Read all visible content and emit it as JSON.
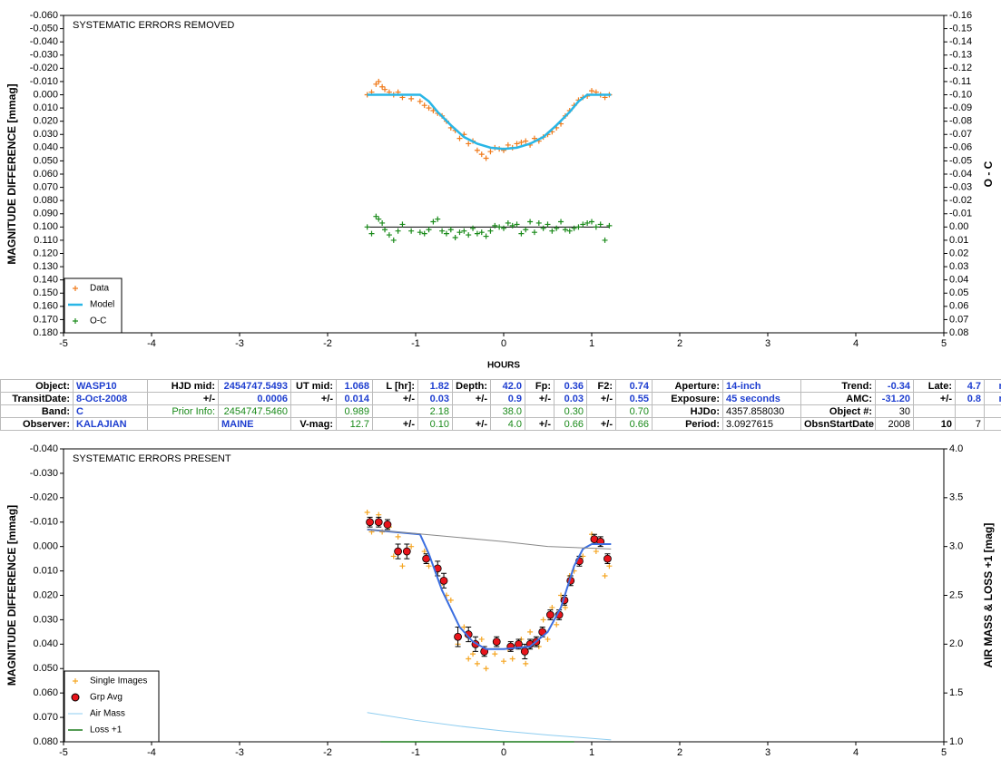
{
  "chart_data": [
    {
      "type": "scatter",
      "title": "SYSTEMATIC ERRORS REMOVED",
      "xlabel": "HOURS",
      "ylabel": "MAGNITUDE DIFFERENCE [mmag]",
      "y2label": "O - C",
      "xlim": [
        -5,
        5
      ],
      "xticks": [
        -5,
        -4,
        -3,
        -2,
        -1,
        0,
        1,
        2,
        3,
        4,
        5
      ],
      "ylim": [
        0.18,
        -0.06
      ],
      "yticks": [
        {
          "value": -0.06,
          "label": "-0.060"
        },
        {
          "value": -0.05,
          "label": "-0.050"
        },
        {
          "value": -0.04,
          "label": "-0.040"
        },
        {
          "value": -0.03,
          "label": "-0.030"
        },
        {
          "value": -0.02,
          "label": "-0.020"
        },
        {
          "value": -0.01,
          "label": "-0.010"
        },
        {
          "value": 0,
          "label": "0.000"
        },
        {
          "value": 0.01,
          "label": "0.010"
        },
        {
          "value": 0.02,
          "label": "0.020"
        },
        {
          "value": 0.03,
          "label": "0.030"
        },
        {
          "value": 0.04,
          "label": "0.040"
        },
        {
          "value": 0.05,
          "label": "0.050"
        },
        {
          "value": 0.06,
          "label": "0.060"
        },
        {
          "value": 0.07,
          "label": "0.070"
        },
        {
          "value": 0.08,
          "label": "0.080"
        },
        {
          "value": 0.09,
          "label": "0.090"
        },
        {
          "value": 0.1,
          "label": "0.100"
        },
        {
          "value": 0.11,
          "label": "0.110"
        },
        {
          "value": 0.12,
          "label": "0.120"
        },
        {
          "value": 0.13,
          "label": "0.130"
        },
        {
          "value": 0.14,
          "label": "0.140"
        },
        {
          "value": 0.15,
          "label": "0.150"
        },
        {
          "value": 0.16,
          "label": "0.160"
        },
        {
          "value": 0.17,
          "label": "0.170"
        },
        {
          "value": 0.18,
          "label": "0.180"
        }
      ],
      "y2lim": [
        0.08,
        -0.16
      ],
      "y2ticks": [
        -0.16,
        -0.15,
        -0.14,
        -0.13,
        -0.12,
        -0.11,
        {
          "value": -0.1,
          "label": "-0.10"
        },
        -0.09,
        -0.08,
        -0.07,
        -0.06,
        -0.05,
        -0.04,
        -0.03,
        -0.02,
        -0.01,
        {
          "value": 0,
          "label": "0.00"
        },
        0.01,
        0.02,
        0.03,
        0.04,
        0.05,
        0.06,
        0.07,
        0.08
      ],
      "y2_zero_tick": 16,
      "legend": "lower left",
      "series": [
        {
          "name": "Data",
          "style": "plus",
          "color": "#f07a1a",
          "x": [
            -1.55,
            -1.5,
            -1.45,
            -1.42,
            -1.38,
            -1.35,
            -1.3,
            -1.25,
            -1.2,
            -1.15,
            -1.05,
            -0.95,
            -0.9,
            -0.85,
            -0.8,
            -0.75,
            -0.7,
            -0.65,
            -0.6,
            -0.55,
            -0.5,
            -0.45,
            -0.4,
            -0.35,
            -0.3,
            -0.25,
            -0.2,
            -0.15,
            -0.1,
            -0.05,
            0,
            0.05,
            0.1,
            0.15,
            0.2,
            0.25,
            0.3,
            0.35,
            0.4,
            0.45,
            0.5,
            0.55,
            0.6,
            0.65,
            0.7,
            0.75,
            0.8,
            0.85,
            0.9,
            0.95,
            1.0,
            1.05,
            1.1,
            1.15,
            1.2
          ],
          "values": [
            0,
            -0.002,
            -0.008,
            -0.01,
            -0.006,
            -0.004,
            -0.002,
            0,
            -0.002,
            0.002,
            0.003,
            0.005,
            0.008,
            0.01,
            0.012,
            0.014,
            0.016,
            0.02,
            0.025,
            0.027,
            0.033,
            0.03,
            0.037,
            0.035,
            0.042,
            0.045,
            0.048,
            0.043,
            0.04,
            0.041,
            0.042,
            0.038,
            0.04,
            0.037,
            0.036,
            0.035,
            0.038,
            0.033,
            0.035,
            0.032,
            0.03,
            0.028,
            0.025,
            0.022,
            0.016,
            0.012,
            0.008,
            0.004,
            0.002,
            0.001,
            -0.003,
            -0.002,
            0,
            0.002,
            0
          ]
        },
        {
          "name": "Model",
          "style": "line",
          "color": "#29b6e6",
          "width": 2.5,
          "x": [
            -1.55,
            -0.95,
            -0.85,
            -0.75,
            -0.6,
            -0.45,
            -0.3,
            -0.15,
            0,
            0.15,
            0.3,
            0.45,
            0.6,
            0.75,
            0.85,
            0.95,
            1.22
          ],
          "values": [
            0,
            0,
            0.005,
            0.013,
            0.023,
            0.032,
            0.037,
            0.04,
            0.041,
            0.04,
            0.037,
            0.032,
            0.023,
            0.013,
            0.005,
            0,
            0
          ]
        },
        {
          "name": "O-C",
          "style": "plus",
          "color": "#1a8a1a",
          "axis": "y2",
          "x": [
            -1.55,
            -1.5,
            -1.45,
            -1.42,
            -1.38,
            -1.35,
            -1.3,
            -1.25,
            -1.2,
            -1.15,
            -1.05,
            -0.95,
            -0.9,
            -0.85,
            -0.8,
            -0.75,
            -0.7,
            -0.65,
            -0.6,
            -0.55,
            -0.5,
            -0.45,
            -0.4,
            -0.35,
            -0.3,
            -0.25,
            -0.2,
            -0.15,
            -0.1,
            -0.05,
            0,
            0.05,
            0.1,
            0.15,
            0.2,
            0.25,
            0.3,
            0.35,
            0.4,
            0.45,
            0.5,
            0.55,
            0.6,
            0.65,
            0.7,
            0.75,
            0.8,
            0.85,
            0.9,
            0.95,
            1.0,
            1.05,
            1.1,
            1.15,
            1.2
          ],
          "values": [
            0,
            0.005,
            -0.008,
            -0.006,
            -0.003,
            0.002,
            0.006,
            0.01,
            0.003,
            -0.002,
            0.003,
            0.004,
            0.005,
            0.002,
            -0.004,
            -0.006,
            0.003,
            0.005,
            0.002,
            0.008,
            0.004,
            0.003,
            0.006,
            0.001,
            0.005,
            0.004,
            0.007,
            0.003,
            -0.001,
            0,
            0.001,
            -0.003,
            -0.001,
            -0.002,
            0.005,
            0.002,
            -0.004,
            0.004,
            -0.003,
            0.001,
            -0.002,
            0.003,
            0.001,
            -0.004,
            0.002,
            0.003,
            0.001,
            0,
            -0.002,
            -0.003,
            -0.004,
            0,
            -0.002,
            0.01,
            -0.001
          ]
        }
      ]
    },
    {
      "type": "scatter",
      "title": "SYSTEMATIC ERRORS PRESENT",
      "ylabel": "MAGNITUDE DIFFERENCE [mmag]",
      "y2label": "AIR MASS & LOSS +1 [mag]",
      "xlim": [
        -5,
        5
      ],
      "xticks": [
        -5,
        -4,
        -3,
        -2,
        -1,
        0,
        1,
        2,
        3,
        4,
        5
      ],
      "ylim": [
        0.08,
        -0.04
      ],
      "yticks": [
        {
          "value": -0.04,
          "label": "-0.040"
        },
        {
          "value": -0.03,
          "label": "-0.030"
        },
        {
          "value": -0.02,
          "label": "-0.020"
        },
        {
          "value": -0.01,
          "label": "-0.010"
        },
        {
          "value": 0,
          "label": "0.000"
        },
        {
          "value": 0.01,
          "label": "0.010"
        },
        {
          "value": 0.02,
          "label": "0.020"
        },
        {
          "value": 0.03,
          "label": "0.030"
        },
        {
          "value": 0.04,
          "label": "0.040"
        },
        {
          "value": 0.05,
          "label": "0.050"
        },
        {
          "value": 0.06,
          "label": "0.060"
        },
        {
          "value": 0.07,
          "label": "0.070"
        },
        {
          "value": 0.08,
          "label": "0.080"
        }
      ],
      "y2lim": [
        1,
        4
      ],
      "y2ticks": [
        {
          "value": 1,
          "label": "1.0"
        },
        1.5,
        {
          "value": 2,
          "label": "2.0"
        },
        2.5,
        {
          "value": 3,
          "label": "3.0"
        },
        3.5,
        {
          "value": 4,
          "label": "4.0"
        }
      ],
      "legend": "lower left",
      "series": [
        {
          "name": "Single Images",
          "style": "plus",
          "color": "#f5a623",
          "x": [
            -1.55,
            -1.5,
            -1.42,
            -1.38,
            -1.3,
            -1.25,
            -1.2,
            -1.15,
            -1.1,
            -1.05,
            -0.9,
            -0.85,
            -0.75,
            -0.7,
            -0.65,
            -0.6,
            -0.52,
            -0.45,
            -0.4,
            -0.35,
            -0.3,
            -0.25,
            -0.2,
            -0.1,
            0,
            0.05,
            0.1,
            0.2,
            0.25,
            0.3,
            0.4,
            0.45,
            0.5,
            0.55,
            0.6,
            0.65,
            0.7,
            0.75,
            0.8,
            0.9,
            1.0,
            1.05,
            1.1,
            1.15,
            1.2
          ],
          "values": [
            -0.014,
            -0.006,
            -0.013,
            -0.006,
            -0.008,
            0.004,
            -0.004,
            0.008,
            0.003,
            0,
            0.002,
            0.008,
            0.01,
            0.015,
            0.02,
            0.022,
            0.04,
            0.033,
            0.046,
            0.044,
            0.048,
            0.038,
            0.05,
            0.044,
            0.047,
            0.042,
            0.046,
            0.038,
            0.048,
            0.035,
            0.041,
            0.03,
            0.038,
            0.025,
            0.032,
            0.02,
            0.025,
            0.012,
            0.01,
            0.004,
            -0.005,
            0.002,
            -0.003,
            0.012,
            0.008
          ]
        },
        {
          "name": "Grp Avg",
          "style": "circle",
          "color": "#e8141b",
          "x": [
            -1.52,
            -1.42,
            -1.32,
            -1.2,
            -1.1,
            -0.88,
            -0.75,
            -0.68,
            -0.52,
            -0.4,
            -0.32,
            -0.22,
            -0.08,
            0.08,
            0.17,
            0.24,
            0.3,
            0.37,
            0.44,
            0.53,
            0.63,
            0.69,
            0.76,
            0.86,
            1.03,
            1.1,
            1.18
          ],
          "values": [
            -0.01,
            -0.01,
            -0.009,
            0.002,
            0.002,
            0.005,
            0.009,
            0.014,
            0.037,
            0.036,
            0.04,
            0.043,
            0.039,
            0.041,
            0.04,
            0.043,
            0.04,
            0.039,
            0.035,
            0.028,
            0.028,
            0.022,
            0.014,
            0.006,
            -0.003,
            -0.002,
            0.005
          ],
          "errors": [
            0.002,
            0.002,
            0.002,
            0.003,
            0.003,
            0.002,
            0.003,
            0.003,
            0.004,
            0.003,
            0.003,
            0.002,
            0.002,
            0.002,
            0.002,
            0.003,
            0.002,
            0.002,
            0.002,
            0.002,
            0.002,
            0.002,
            0.002,
            0.002,
            0.002,
            0.002,
            0.002
          ]
        },
        {
          "name": "Air Mass",
          "style": "line",
          "color": "#8ecdf0",
          "axis": "y2",
          "width": 1,
          "x": [
            -1.55,
            -1,
            -0.5,
            0,
            0.5,
            1.22
          ],
          "values": [
            1.3,
            1.22,
            1.16,
            1.11,
            1.07,
            1.02
          ]
        },
        {
          "name": "Loss +1",
          "style": "line",
          "color": "#1a7a1a",
          "axis": "y2",
          "width": 1.5,
          "x": [
            -1.4,
            0.8
          ],
          "values": [
            1,
            1
          ]
        },
        {
          "style": "line",
          "color": "#3b6ee0",
          "width": 2,
          "x": [
            -1.55,
            -0.95,
            -0.85,
            -0.7,
            -0.5,
            -0.35,
            -0.2,
            0,
            0.3,
            0.5,
            0.65,
            0.8,
            0.9,
            1.0,
            1.22
          ],
          "values": [
            -0.007,
            -0.005,
            0.003,
            0.018,
            0.033,
            0.039,
            0.042,
            0.042,
            0.041,
            0.035,
            0.025,
            0.008,
            0.001,
            -0.001,
            -0.001
          ]
        },
        {
          "style": "line",
          "color": "#888888",
          "width": 1,
          "x": [
            -1.55,
            -0.9,
            0,
            0.5,
            1.22
          ],
          "values": [
            -0.007,
            -0.005,
            -0.002,
            0,
            0.001
          ]
        }
      ]
    }
  ],
  "table": {
    "rows": [
      [
        "Object:",
        "WASP10",
        "HJD mid:",
        "2454747.5493",
        "UT mid:",
        "1.068",
        "L [hr]:",
        "1.82",
        "Depth:",
        "42.0",
        "Fp:",
        "0.36",
        "F2:",
        "0.74",
        "Aperture:",
        "14-inch",
        "Trend:",
        "-0.34",
        "Late:",
        "4.7",
        "min"
      ],
      [
        "TransitDate:",
        "8-Oct-2008",
        "+/-",
        "0.0006",
        "+/-",
        "0.014",
        "+/-",
        "0.03",
        "+/-",
        "0.9",
        "+/-",
        "0.03",
        "+/-",
        "0.55",
        "Exposure:",
        "45 seconds",
        "AMC:",
        "-31.20",
        "+/-",
        "0.8",
        "min"
      ],
      [
        "Band:",
        "C",
        "Prior Info:",
        "2454747.5460",
        null,
        "0.989",
        null,
        "2.18",
        null,
        "38.0",
        null,
        "0.30",
        null,
        "0.70",
        "HJDo:",
        "4357.858030",
        "Object #:",
        "30",
        null,
        null,
        null
      ],
      [
        "Observer:",
        "KALAJIAN",
        null,
        "MAINE",
        "V-mag:",
        "12.7",
        "+/-",
        "0.10",
        "+/-",
        "4.0",
        "+/-",
        "0.66",
        "+/-",
        "0.66",
        "Period:",
        "3.0927615",
        "ObsnStartDate:",
        "2008",
        "10",
        "7",
        null
      ]
    ]
  }
}
